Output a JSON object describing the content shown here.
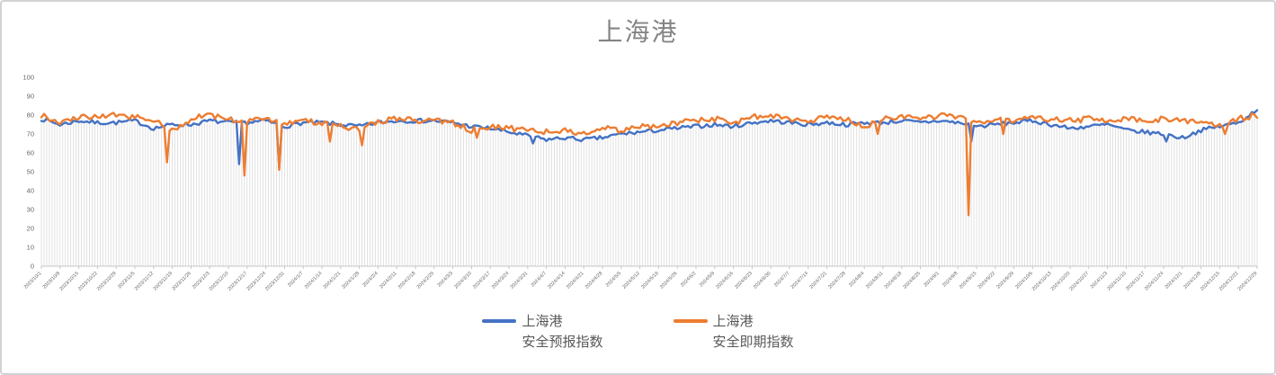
{
  "window": {
    "background": "#ffffff",
    "border_color": "#d2d2d6"
  },
  "chart_data": {
    "type": "line",
    "title": "上海港",
    "title_color": "#848484",
    "x_interval": "daily",
    "x_start_date": "2023/10/1",
    "x_end_date": "2024/12/29",
    "x_tick_labels": [
      "2023/10/1",
      "2023/10/8",
      "2023/10/15",
      "2023/10/22",
      "2023/10/29",
      "2023/11/5",
      "2023/11/12",
      "2023/11/19",
      "2023/11/26",
      "2023/12/3",
      "2023/12/10",
      "2023/12/17",
      "2023/12/24",
      "2023/12/31",
      "2024/1/7",
      "2024/1/14",
      "2024/1/21",
      "2024/1/28",
      "2024/2/4",
      "2024/2/11",
      "2024/2/18",
      "2024/2/25",
      "2024/3/3",
      "2024/3/10",
      "2024/3/17",
      "2024/3/24",
      "2024/3/31",
      "2024/4/7",
      "2024/4/14",
      "2024/4/21",
      "2024/4/28",
      "2024/5/5",
      "2024/5/12",
      "2024/5/19",
      "2024/5/26",
      "2024/6/2",
      "2024/6/9",
      "2024/6/16",
      "2024/6/23",
      "2024/6/30",
      "2024/7/7",
      "2024/7/14",
      "2024/7/21",
      "2024/7/28",
      "2024/8/4",
      "2024/8/11",
      "2024/8/18",
      "2024/8/25",
      "2024/9/1",
      "2024/9/8",
      "2024/9/15",
      "2024/9/22",
      "2024/9/29",
      "2024/10/6",
      "2024/10/13",
      "2024/10/20",
      "2024/10/27",
      "2024/11/3",
      "2024/11/10",
      "2024/11/17",
      "2024/11/24",
      "2024/12/1",
      "2024/12/8",
      "2024/12/15",
      "2024/12/22",
      "2024/12/29"
    ],
    "ylim": [
      0,
      100
    ],
    "y_ticks": [
      0,
      10,
      20,
      30,
      40,
      50,
      60,
      70,
      80,
      90,
      100
    ],
    "grid": "vertical-drop-lines-per-day",
    "drop_line_color": "#dadada",
    "axis_color": "#c6c6c6",
    "tick_label_color": "#666666",
    "legend_position": "bottom",
    "noise_seed": 7,
    "series": [
      {
        "name": "上海港 安全预报指数",
        "color": "#4472C4",
        "noise_amp": 1.1,
        "weekly_values": [
          78,
          75,
          77,
          76,
          76,
          77,
          73,
          75,
          75,
          77,
          76,
          76,
          77,
          74,
          76,
          76,
          75,
          74,
          76,
          77,
          77,
          77,
          76,
          74,
          73,
          71,
          69,
          67,
          68,
          67,
          68,
          70,
          71,
          72,
          73,
          74,
          75,
          74,
          76,
          77,
          76,
          75,
          76,
          75,
          76,
          76,
          77,
          76,
          77,
          76,
          74,
          75,
          76,
          77,
          75,
          73,
          74,
          75,
          72,
          71,
          70,
          68,
          72,
          74,
          76,
          83
        ],
        "dip_events": [
          {
            "day": 74,
            "value": 54
          },
          {
            "day": 89,
            "value": 52
          },
          {
            "day": 184,
            "value": 65
          },
          {
            "day": 348,
            "value": 66
          },
          {
            "day": 421,
            "value": 66
          }
        ]
      },
      {
        "name": "上海港 安全即期指数",
        "color": "#ED7D31",
        "noise_amp": 1.5,
        "weekly_values": [
          80,
          76,
          79,
          79,
          80,
          79,
          77,
          72,
          78,
          80,
          78,
          77,
          79,
          75,
          77,
          76,
          74,
          72,
          77,
          78,
          77,
          77,
          76,
          72,
          74,
          73,
          72,
          71,
          72,
          70,
          73,
          72,
          74,
          74,
          76,
          77,
          78,
          76,
          79,
          80,
          78,
          77,
          79,
          78,
          74,
          78,
          79,
          78,
          80,
          79,
          75,
          78,
          77,
          79,
          78,
          77,
          78,
          77,
          78,
          77,
          78,
          77,
          76,
          74,
          78,
          80
        ],
        "dip_events": [
          {
            "day": 47,
            "value": 55
          },
          {
            "day": 76,
            "value": 48
          },
          {
            "day": 89,
            "value": 51
          },
          {
            "day": 108,
            "value": 66
          },
          {
            "day": 120,
            "value": 64
          },
          {
            "day": 163,
            "value": 68
          },
          {
            "day": 313,
            "value": 70
          },
          {
            "day": 347,
            "value": 27
          },
          {
            "day": 360,
            "value": 70
          },
          {
            "day": 443,
            "value": 70
          }
        ]
      }
    ]
  },
  "legend": {
    "items": [
      {
        "line1": "上海港",
        "line2": "安全预报指数",
        "color": "#4472C4"
      },
      {
        "line1": "上海港",
        "line2": "安全即期指数",
        "color": "#ED7D31"
      }
    ]
  }
}
